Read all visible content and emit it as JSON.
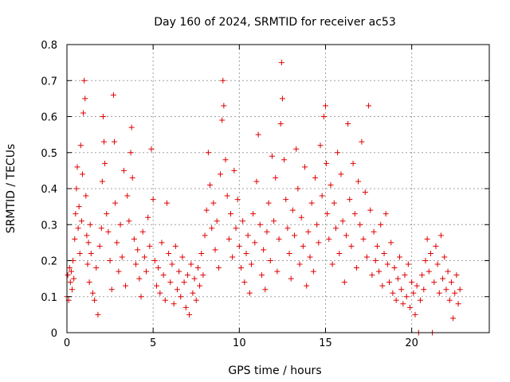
{
  "chart_data": {
    "type": "scatter",
    "title": "Day 160 of 2024, SRMTID for receiver ac53",
    "xlabel": "GPS time / hours",
    "ylabel": "SRMTID / TECUs",
    "xlim": [
      0,
      24.5
    ],
    "ylim": [
      0,
      0.8
    ],
    "xticks": [
      0,
      5,
      10,
      15,
      20
    ],
    "xtick_labels": [
      "0",
      "5",
      "10",
      "15",
      "20"
    ],
    "yticks": [
      0,
      0.1,
      0.2,
      0.3,
      0.4,
      0.5,
      0.6,
      0.7,
      0.8
    ],
    "ytick_labels": [
      "0",
      "0.1",
      "0.2",
      "0.3",
      "0.4",
      "0.5",
      "0.6",
      "0.7",
      "0.8"
    ],
    "grid": true,
    "marker": "plus",
    "color": "#e00000",
    "series": [
      {
        "name": "SRMTID",
        "points": [
          [
            0.0,
            0.1
          ],
          [
            0.05,
            0.16
          ],
          [
            0.1,
            0.09
          ],
          [
            0.15,
            0.18
          ],
          [
            0.2,
            0.14
          ],
          [
            0.25,
            0.17
          ],
          [
            0.3,
            0.12
          ],
          [
            0.35,
            0.2
          ],
          [
            0.4,
            0.15
          ],
          [
            0.45,
            0.26
          ],
          [
            0.5,
            0.33
          ],
          [
            0.55,
            0.4
          ],
          [
            0.6,
            0.46
          ],
          [
            0.65,
            0.29
          ],
          [
            0.7,
            0.35
          ],
          [
            0.75,
            0.22
          ],
          [
            0.8,
            0.52
          ],
          [
            0.85,
            0.31
          ],
          [
            0.9,
            0.44
          ],
          [
            0.95,
            0.61
          ],
          [
            1.0,
            0.7
          ],
          [
            1.05,
            0.65
          ],
          [
            1.1,
            0.38
          ],
          [
            1.15,
            0.27
          ],
          [
            1.2,
            0.19
          ],
          [
            1.25,
            0.25
          ],
          [
            1.3,
            0.14
          ],
          [
            1.35,
            0.3
          ],
          [
            1.4,
            0.22
          ],
          [
            1.5,
            0.11
          ],
          [
            1.6,
            0.09
          ],
          [
            1.7,
            0.18
          ],
          [
            1.8,
            0.05
          ],
          [
            1.9,
            0.24
          ],
          [
            2.0,
            0.29
          ],
          [
            2.05,
            0.42
          ],
          [
            2.1,
            0.6
          ],
          [
            2.15,
            0.53
          ],
          [
            2.2,
            0.47
          ],
          [
            2.3,
            0.33
          ],
          [
            2.4,
            0.28
          ],
          [
            2.5,
            0.2
          ],
          [
            2.6,
            0.12
          ],
          [
            2.7,
            0.66
          ],
          [
            2.75,
            0.53
          ],
          [
            2.8,
            0.36
          ],
          [
            2.9,
            0.25
          ],
          [
            3.0,
            0.17
          ],
          [
            3.1,
            0.3
          ],
          [
            3.2,
            0.21
          ],
          [
            3.3,
            0.45
          ],
          [
            3.4,
            0.13
          ],
          [
            3.5,
            0.38
          ],
          [
            3.6,
            0.31
          ],
          [
            3.7,
            0.5
          ],
          [
            3.75,
            0.57
          ],
          [
            3.8,
            0.43
          ],
          [
            3.9,
            0.26
          ],
          [
            4.0,
            0.19
          ],
          [
            4.1,
            0.23
          ],
          [
            4.2,
            0.15
          ],
          [
            4.3,
            0.1
          ],
          [
            4.4,
            0.28
          ],
          [
            4.5,
            0.21
          ],
          [
            4.6,
            0.17
          ],
          [
            4.7,
            0.32
          ],
          [
            4.8,
            0.24
          ],
          [
            4.9,
            0.51
          ],
          [
            5.0,
            0.37
          ],
          [
            5.1,
            0.2
          ],
          [
            5.2,
            0.13
          ],
          [
            5.3,
            0.18
          ],
          [
            5.4,
            0.11
          ],
          [
            5.5,
            0.25
          ],
          [
            5.6,
            0.16
          ],
          [
            5.7,
            0.09
          ],
          [
            5.8,
            0.36
          ],
          [
            5.9,
            0.22
          ],
          [
            6.0,
            0.14
          ],
          [
            6.1,
            0.19
          ],
          [
            6.2,
            0.08
          ],
          [
            6.3,
            0.24
          ],
          [
            6.4,
            0.12
          ],
          [
            6.5,
            0.17
          ],
          [
            6.6,
            0.1
          ],
          [
            6.7,
            0.21
          ],
          [
            6.8,
            0.14
          ],
          [
            6.9,
            0.07
          ],
          [
            7.0,
            0.16
          ],
          [
            7.1,
            0.05
          ],
          [
            7.2,
            0.19
          ],
          [
            7.3,
            0.11
          ],
          [
            7.4,
            0.15
          ],
          [
            7.5,
            0.09
          ],
          [
            7.6,
            0.18
          ],
          [
            7.7,
            0.13
          ],
          [
            7.8,
            0.22
          ],
          [
            7.9,
            0.16
          ],
          [
            8.0,
            0.27
          ],
          [
            8.1,
            0.34
          ],
          [
            8.2,
            0.5
          ],
          [
            8.3,
            0.41
          ],
          [
            8.4,
            0.29
          ],
          [
            8.5,
            0.36
          ],
          [
            8.6,
            0.23
          ],
          [
            8.7,
            0.31
          ],
          [
            8.8,
            0.18
          ],
          [
            8.9,
            0.44
          ],
          [
            9.0,
            0.59
          ],
          [
            9.05,
            0.7
          ],
          [
            9.1,
            0.63
          ],
          [
            9.2,
            0.48
          ],
          [
            9.3,
            0.38
          ],
          [
            9.4,
            0.26
          ],
          [
            9.5,
            0.33
          ],
          [
            9.6,
            0.21
          ],
          [
            9.7,
            0.45
          ],
          [
            9.8,
            0.29
          ],
          [
            9.9,
            0.37
          ],
          [
            10.0,
            0.24
          ],
          [
            10.1,
            0.18
          ],
          [
            10.2,
            0.31
          ],
          [
            10.3,
            0.14
          ],
          [
            10.4,
            0.22
          ],
          [
            10.5,
            0.27
          ],
          [
            10.6,
            0.11
          ],
          [
            10.7,
            0.19
          ],
          [
            10.8,
            0.33
          ],
          [
            10.9,
            0.25
          ],
          [
            11.0,
            0.42
          ],
          [
            11.1,
            0.55
          ],
          [
            11.2,
            0.3
          ],
          [
            11.3,
            0.16
          ],
          [
            11.4,
            0.23
          ],
          [
            11.5,
            0.12
          ],
          [
            11.6,
            0.28
          ],
          [
            11.7,
            0.36
          ],
          [
            11.8,
            0.2
          ],
          [
            11.9,
            0.49
          ],
          [
            12.0,
            0.31
          ],
          [
            12.1,
            0.43
          ],
          [
            12.2,
            0.17
          ],
          [
            12.3,
            0.26
          ],
          [
            12.4,
            0.58
          ],
          [
            12.45,
            0.75
          ],
          [
            12.5,
            0.65
          ],
          [
            12.6,
            0.48
          ],
          [
            12.7,
            0.37
          ],
          [
            12.8,
            0.29
          ],
          [
            12.9,
            0.22
          ],
          [
            13.0,
            0.15
          ],
          [
            13.1,
            0.34
          ],
          [
            13.2,
            0.27
          ],
          [
            13.3,
            0.51
          ],
          [
            13.4,
            0.4
          ],
          [
            13.5,
            0.19
          ],
          [
            13.6,
            0.32
          ],
          [
            13.7,
            0.24
          ],
          [
            13.8,
            0.46
          ],
          [
            13.9,
            0.13
          ],
          [
            14.0,
            0.28
          ],
          [
            14.1,
            0.21
          ],
          [
            14.2,
            0.36
          ],
          [
            14.3,
            0.17
          ],
          [
            14.4,
            0.43
          ],
          [
            14.5,
            0.3
          ],
          [
            14.6,
            0.25
          ],
          [
            14.7,
            0.52
          ],
          [
            14.8,
            0.38
          ],
          [
            14.9,
            0.6
          ],
          [
            15.0,
            0.63
          ],
          [
            15.05,
            0.47
          ],
          [
            15.1,
            0.33
          ],
          [
            15.2,
            0.26
          ],
          [
            15.3,
            0.41
          ],
          [
            15.4,
            0.19
          ],
          [
            15.5,
            0.36
          ],
          [
            15.6,
            0.29
          ],
          [
            15.7,
            0.5
          ],
          [
            15.8,
            0.22
          ],
          [
            15.9,
            0.44
          ],
          [
            16.0,
            0.31
          ],
          [
            16.1,
            0.14
          ],
          [
            16.2,
            0.27
          ],
          [
            16.3,
            0.58
          ],
          [
            16.4,
            0.37
          ],
          [
            16.5,
            0.24
          ],
          [
            16.6,
            0.47
          ],
          [
            16.7,
            0.33
          ],
          [
            16.8,
            0.18
          ],
          [
            16.9,
            0.42
          ],
          [
            17.0,
            0.3
          ],
          [
            17.1,
            0.53
          ],
          [
            17.2,
            0.26
          ],
          [
            17.3,
            0.39
          ],
          [
            17.4,
            0.21
          ],
          [
            17.5,
            0.63
          ],
          [
            17.6,
            0.34
          ],
          [
            17.7,
            0.16
          ],
          [
            17.8,
            0.28
          ],
          [
            17.9,
            0.2
          ],
          [
            18.0,
            0.24
          ],
          [
            18.1,
            0.17
          ],
          [
            18.2,
            0.3
          ],
          [
            18.3,
            0.13
          ],
          [
            18.4,
            0.22
          ],
          [
            18.5,
            0.33
          ],
          [
            18.6,
            0.19
          ],
          [
            18.7,
            0.14
          ],
          [
            18.8,
            0.25
          ],
          [
            18.9,
            0.11
          ],
          [
            19.0,
            0.18
          ],
          [
            19.1,
            0.09
          ],
          [
            19.2,
            0.15
          ],
          [
            19.3,
            0.21
          ],
          [
            19.4,
            0.12
          ],
          [
            19.5,
            0.08
          ],
          [
            19.6,
            0.16
          ],
          [
            19.7,
            0.1
          ],
          [
            19.8,
            0.19
          ],
          [
            19.9,
            0.07
          ],
          [
            20.0,
            0.14
          ],
          [
            20.1,
            0.11
          ],
          [
            20.2,
            0.05
          ],
          [
            20.3,
            0.13
          ],
          [
            20.4,
            0.0
          ],
          [
            20.5,
            0.09
          ],
          [
            20.6,
            0.16
          ],
          [
            20.7,
            0.12
          ],
          [
            20.8,
            0.2
          ],
          [
            20.9,
            0.26
          ],
          [
            21.0,
            0.17
          ],
          [
            21.1,
            0.22
          ],
          [
            21.2,
            0.0
          ],
          [
            21.3,
            0.14
          ],
          [
            21.4,
            0.24
          ],
          [
            21.5,
            0.19
          ],
          [
            21.6,
            0.11
          ],
          [
            21.7,
            0.27
          ],
          [
            21.8,
            0.15
          ],
          [
            21.9,
            0.21
          ],
          [
            22.0,
            0.12
          ],
          [
            22.1,
            0.17
          ],
          [
            22.2,
            0.09
          ],
          [
            22.3,
            0.14
          ],
          [
            22.4,
            0.04
          ],
          [
            22.5,
            0.11
          ],
          [
            22.6,
            0.16
          ],
          [
            22.7,
            0.08
          ],
          [
            22.8,
            0.12
          ]
        ]
      }
    ]
  }
}
